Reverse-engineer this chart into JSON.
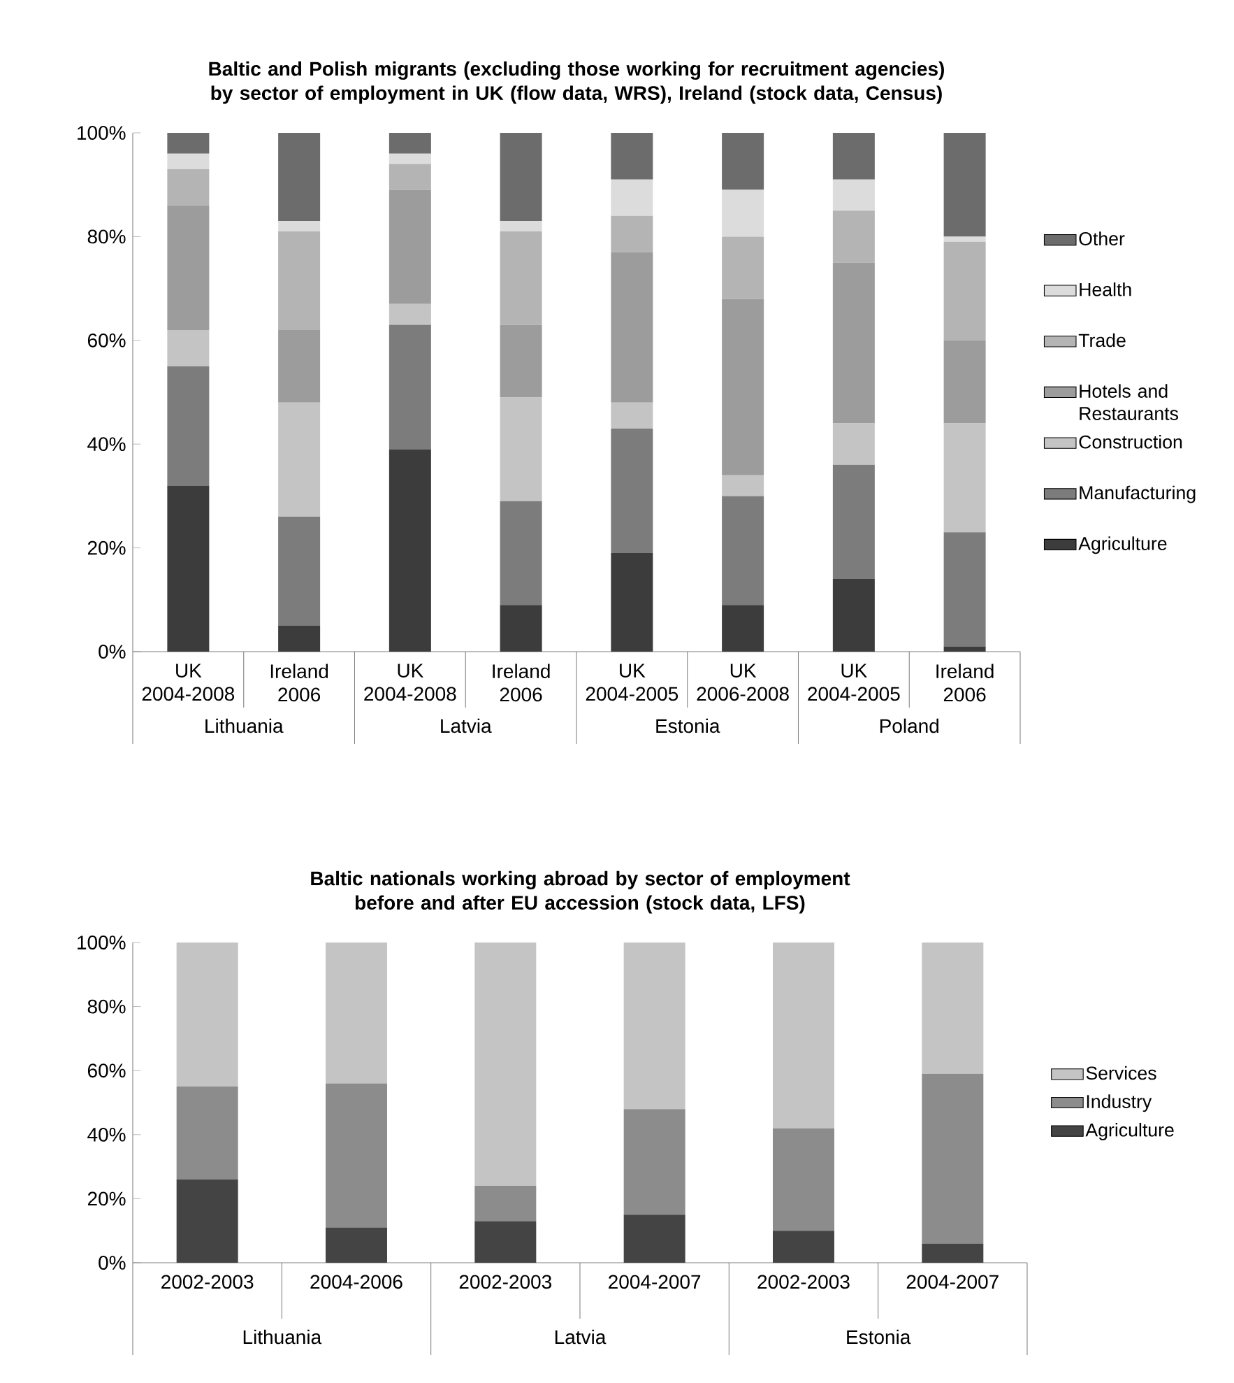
{
  "chart_data": [
    {
      "type": "bar",
      "stacked": true,
      "title": "Baltic and Polish migrants (excluding those working for recruitment agencies) by sector of employment in UK (flow data, WRS), Ireland (stock data, Census)",
      "categories": [
        "UK 2004-2008",
        "Ireland 2006",
        "UK 2004-2008",
        "Ireland 2006",
        "UK 2004-2005",
        "UK 2006-2008",
        "UK 2004-2005",
        "Ireland 2006"
      ],
      "annotations": [
        "Lithuania",
        "Latvia",
        "Estonia",
        "Poland"
      ],
      "ylim": [
        0,
        100
      ],
      "yticks": [
        {
          "value": 0,
          "label": "0%"
        },
        {
          "value": 20,
          "label": "20%"
        },
        {
          "value": 40,
          "label": "40%"
        },
        {
          "value": 60,
          "label": "60%"
        },
        {
          "value": 80,
          "label": "80%"
        },
        {
          "value": 100,
          "label": "100%"
        }
      ],
      "legend": "right",
      "series": [
        {
          "name": "Agriculture",
          "color": "#3c3c3c",
          "values": [
            32,
            5,
            39,
            9,
            19,
            9,
            14,
            1
          ]
        },
        {
          "name": "Manufacturing",
          "color": "#7c7c7c",
          "values": [
            23,
            21,
            24,
            20,
            24,
            21,
            22,
            22
          ]
        },
        {
          "name": "Construction",
          "color": "#c4c4c4",
          "values": [
            7,
            22,
            4,
            20,
            5,
            4,
            8,
            21
          ]
        },
        {
          "name": "Hotels and Restaurants",
          "color": "#9c9c9c",
          "values": [
            24,
            14,
            22,
            14,
            29,
            34,
            31,
            16
          ]
        },
        {
          "name": "Trade",
          "color": "#b4b4b4",
          "values": [
            7,
            19,
            5,
            18,
            7,
            12,
            10,
            19
          ]
        },
        {
          "name": "Health",
          "color": "#dcdcdc",
          "values": [
            3,
            2,
            2,
            2,
            7,
            9,
            6,
            1
          ]
        },
        {
          "name": "Other",
          "color": "#6c6c6c",
          "values": [
            4,
            17,
            4,
            17,
            9,
            11,
            9,
            20
          ]
        }
      ]
    },
    {
      "type": "bar",
      "stacked": true,
      "title": "Baltic nationals working abroad by sector of employment before and after EU accession (stock data, LFS)",
      "categories": [
        "2002-2003",
        "2004-2006",
        "2002-2003",
        "2004-2007",
        "2002-2003",
        "2004-2007"
      ],
      "annotations": [
        "Lithuania",
        "Latvia",
        "Estonia"
      ],
      "ylim": [
        0,
        100
      ],
      "yticks": [
        {
          "value": 0,
          "label": "0%"
        },
        {
          "value": 20,
          "label": "20%"
        },
        {
          "value": 40,
          "label": "40%"
        },
        {
          "value": 60,
          "label": "60%"
        },
        {
          "value": 80,
          "label": "80%"
        },
        {
          "value": 100,
          "label": "100%"
        }
      ],
      "legend": "right",
      "series": [
        {
          "name": "Agriculture",
          "color": "#444444",
          "values": [
            26,
            11,
            13,
            15,
            10,
            6
          ]
        },
        {
          "name": "Industry",
          "color": "#8c8c8c",
          "values": [
            29,
            45,
            11,
            33,
            32,
            53
          ]
        },
        {
          "name": "Services",
          "color": "#c4c4c4",
          "values": [
            45,
            44,
            76,
            52,
            58,
            41
          ]
        }
      ]
    }
  ]
}
